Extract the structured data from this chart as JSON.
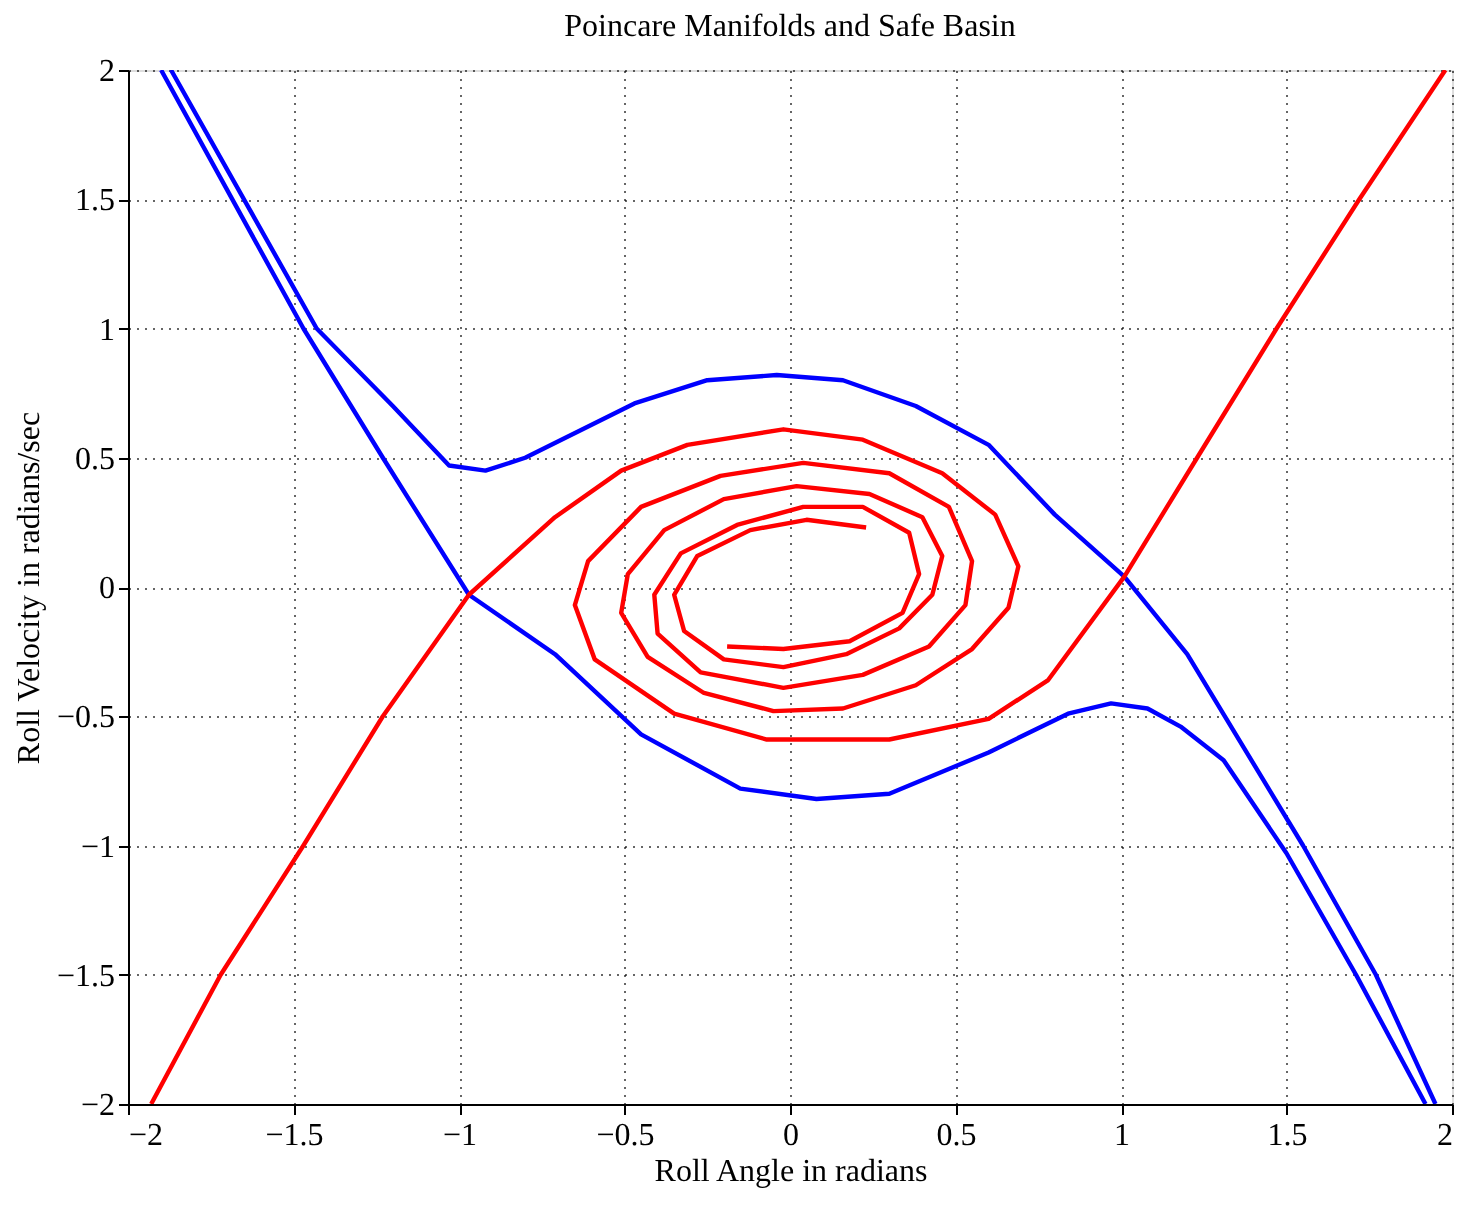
{
  "chart_data": {
    "type": "line",
    "title": "Poincare Manifolds and Safe Basin",
    "xlabel": "Roll Angle in radians",
    "ylabel": "Roll Velocity in radians/sec",
    "xlim": [
      -2,
      2
    ],
    "ylim": [
      -2,
      2
    ],
    "xticks": [
      -2,
      -1.5,
      -1,
      -0.5,
      0,
      0.5,
      1,
      1.5,
      2
    ],
    "yticks": [
      -2,
      -1.5,
      -1,
      -0.5,
      0,
      0.5,
      1,
      1.5,
      2
    ],
    "grid": true,
    "legend": false,
    "line_style": "solid",
    "marker": "none",
    "series": [
      {
        "color": "#0000ff",
        "x": [
          -1.87,
          -1.43,
          -1.2,
          -1.03,
          -0.92,
          -0.8,
          -0.47,
          -0.25,
          -0.04,
          0.16,
          0.38,
          0.6,
          0.8,
          1.01,
          1.2,
          1.55,
          1.77,
          1.95
        ],
        "values": [
          2,
          1.0,
          0.7,
          0.47,
          0.45,
          0.5,
          0.71,
          0.8,
          0.82,
          0.8,
          0.7,
          0.55,
          0.28,
          0.04,
          -0.26,
          -1.0,
          -1.5,
          -2
        ]
      },
      {
        "color": "#0000ff",
        "x": [
          -1.9,
          -1.47,
          -1.23,
          -0.97,
          -0.71,
          -0.45,
          -0.15,
          0.08,
          0.3,
          0.6,
          0.84,
          0.97,
          1.08,
          1.18,
          1.31,
          1.5,
          1.71,
          1.92
        ],
        "values": [
          2,
          1.0,
          0.5,
          -0.03,
          -0.26,
          -0.57,
          -0.78,
          -0.82,
          -0.8,
          -0.64,
          -0.49,
          -0.45,
          -0.47,
          -0.54,
          -0.67,
          -1.03,
          -1.5,
          -2
        ]
      },
      {
        "color": "#ff0000",
        "x": [
          -1.93,
          -1.72,
          -1.47,
          -1.23,
          -0.97,
          -0.71,
          -0.51,
          -0.31,
          -0.02,
          0.22,
          0.46,
          0.62,
          0.69,
          0.66,
          0.55,
          0.38,
          0.16,
          -0.05,
          -0.26,
          -0.43,
          -0.51,
          -0.49,
          -0.38,
          -0.2,
          0.02,
          0.24,
          0.4,
          0.46,
          0.43,
          0.33,
          0.17,
          -0.02,
          -0.2,
          -0.32,
          -0.35,
          -0.28,
          -0.12,
          0.05,
          0.23
        ],
        "values": [
          -2,
          -1.5,
          -1.0,
          -0.5,
          -0.03,
          0.27,
          0.45,
          0.55,
          0.61,
          0.57,
          0.44,
          0.28,
          0.08,
          -0.08,
          -0.24,
          -0.38,
          -0.47,
          -0.48,
          -0.41,
          -0.27,
          -0.1,
          0.05,
          0.22,
          0.34,
          0.39,
          0.36,
          0.27,
          0.12,
          -0.03,
          -0.16,
          -0.26,
          -0.31,
          -0.28,
          -0.17,
          -0.03,
          0.12,
          0.22,
          0.26,
          0.23
        ]
      },
      {
        "color": "#ff0000",
        "x": [
          1.98,
          1.72,
          1.47,
          1.23,
          1.01,
          0.78,
          0.6,
          0.3,
          -0.07,
          -0.35,
          -0.59,
          -0.65,
          -0.61,
          -0.45,
          -0.21,
          0.04,
          0.3,
          0.48,
          0.55,
          0.53,
          0.42,
          0.22,
          -0.02,
          -0.27,
          -0.4,
          -0.41,
          -0.33,
          -0.16,
          0.04,
          0.22,
          0.36,
          0.39,
          0.34,
          0.18,
          -0.02,
          -0.19
        ],
        "values": [
          2,
          1.5,
          1.0,
          0.5,
          0.04,
          -0.36,
          -0.51,
          -0.59,
          -0.59,
          -0.49,
          -0.28,
          -0.07,
          0.1,
          0.31,
          0.43,
          0.48,
          0.44,
          0.31,
          0.1,
          -0.07,
          -0.23,
          -0.34,
          -0.39,
          -0.33,
          -0.18,
          -0.03,
          0.13,
          0.24,
          0.31,
          0.31,
          0.21,
          0.05,
          -0.1,
          -0.21,
          -0.24,
          -0.23
        ]
      }
    ]
  }
}
